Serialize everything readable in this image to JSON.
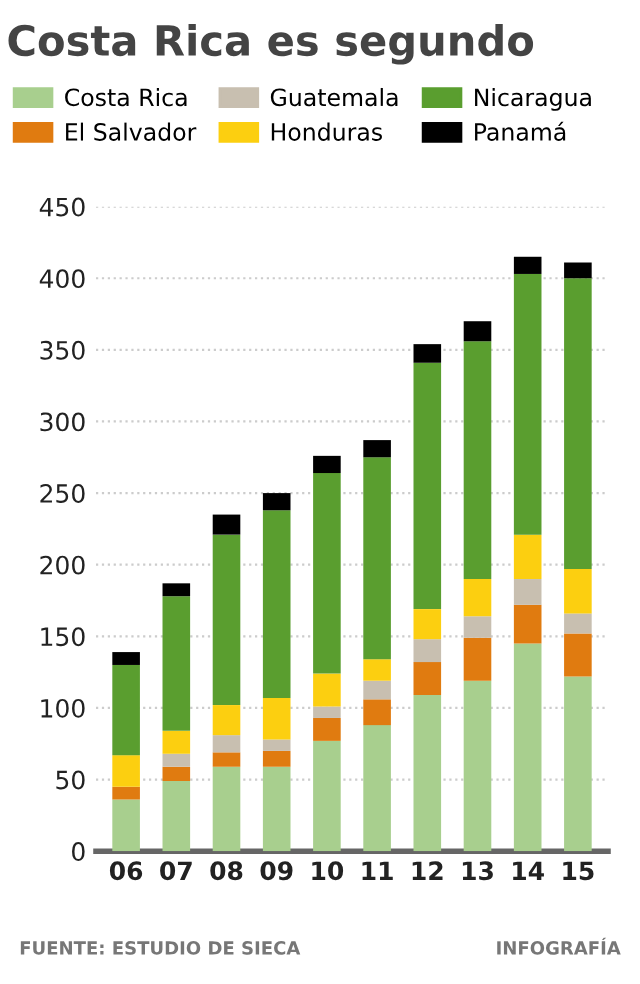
{
  "chart_data": {
    "type": "bar",
    "title": "Costa Rica es segundo",
    "categories": [
      "06",
      "07",
      "08",
      "09",
      "10",
      "11",
      "12",
      "13",
      "14",
      "15"
    ],
    "stacked": true,
    "series": [
      {
        "name": "Costa Rica",
        "color": "#a8cf8e",
        "values": [
          36,
          49,
          59,
          59,
          77,
          88,
          109,
          119,
          145,
          122
        ]
      },
      {
        "name": "El Salvador",
        "color": "#e07b10",
        "values": [
          9,
          10,
          10,
          11,
          16,
          18,
          23,
          30,
          27,
          30
        ]
      },
      {
        "name": "Guatemala",
        "color": "#c8bfb0",
        "values": [
          null,
          9,
          12,
          8,
          8,
          13,
          16,
          15,
          18,
          14
        ]
      },
      {
        "name": "Honduras",
        "color": "#fccf10",
        "values": [
          22,
          16,
          21,
          29,
          23,
          15,
          21,
          26,
          31,
          31
        ]
      },
      {
        "name": "Nicaragua",
        "color": "#5a9e2f",
        "values": [
          63,
          94,
          119,
          131,
          140,
          141,
          172,
          166,
          182,
          203
        ]
      },
      {
        "name": "Panamá",
        "color": "#000000",
        "values": [
          9,
          9,
          14,
          12,
          12,
          12,
          13,
          14,
          12,
          11
        ]
      }
    ],
    "ylim": [
      0,
      450
    ],
    "yticks": [
      0,
      50,
      100,
      150,
      200,
      250,
      300,
      350,
      400,
      450
    ],
    "grid": "y",
    "legend": "top",
    "annotations": [
      "FUENTE: ESTUDIO DE SIECA",
      "INFOGRAFÍA"
    ]
  }
}
